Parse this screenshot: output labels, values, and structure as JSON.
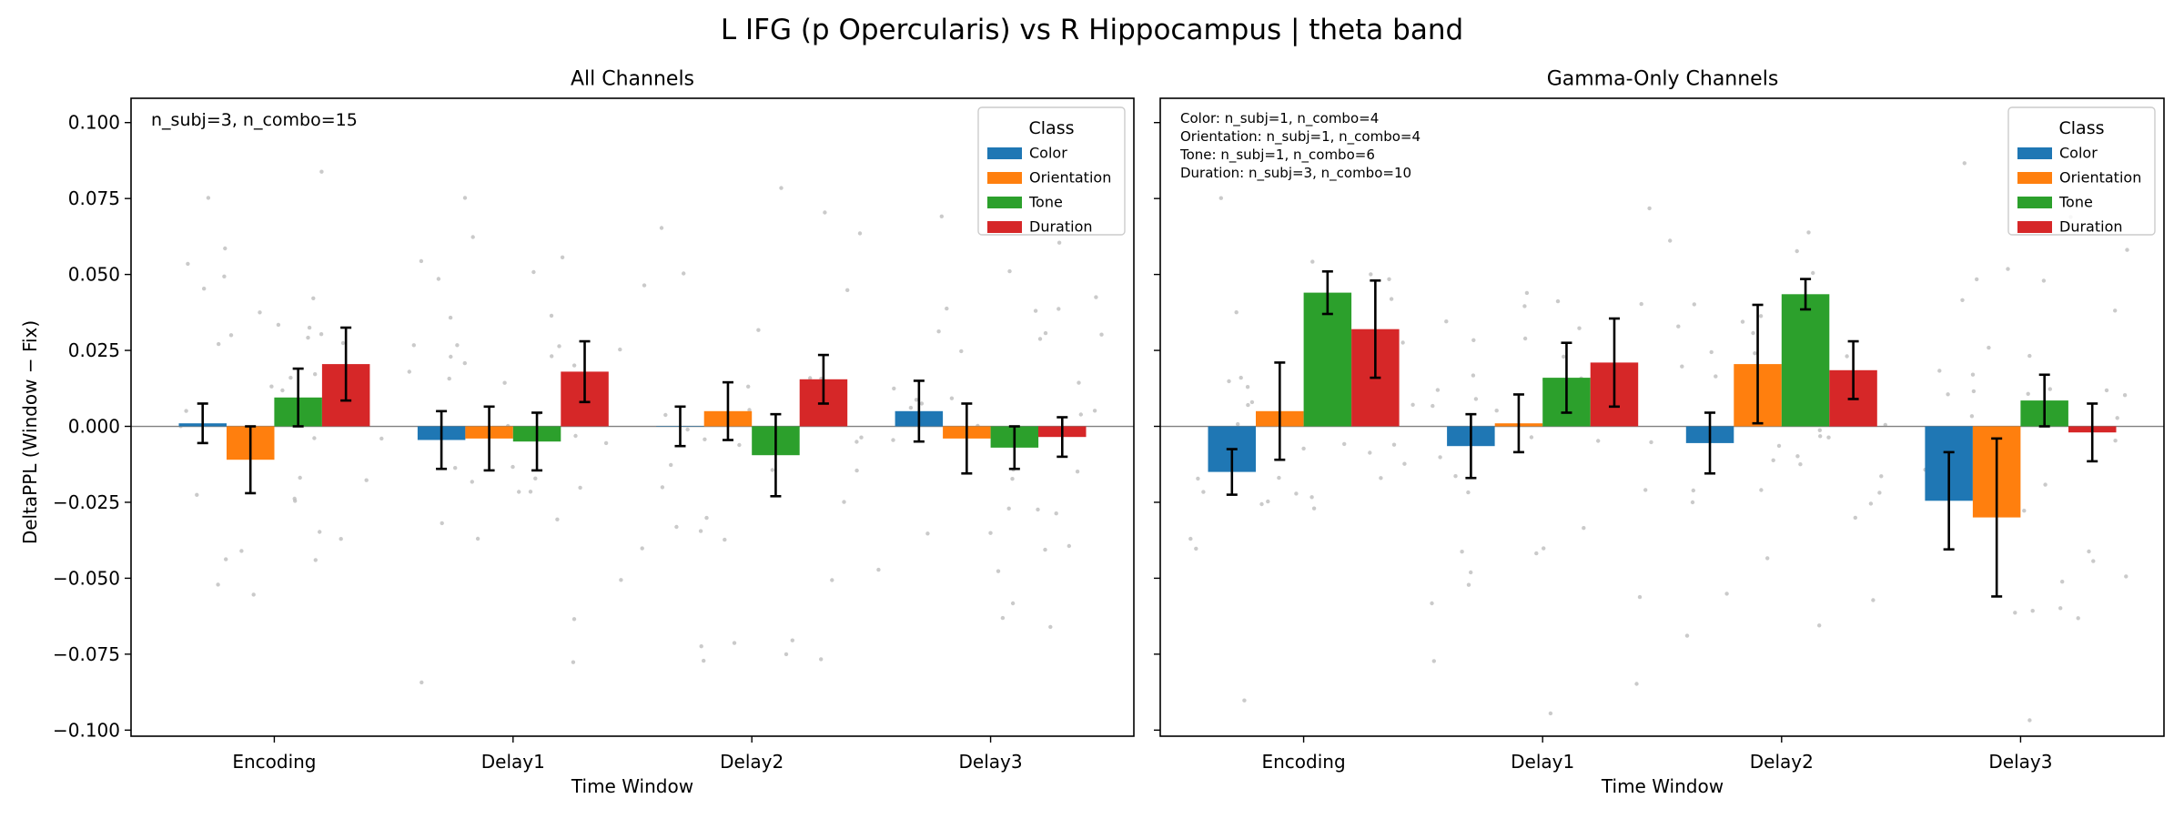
{
  "figure": {
    "suptitle": "L IFG (p Opercularis) vs R Hippocampus  |  theta band",
    "ylabel": "DeltaPPL (Window − Fix)"
  },
  "legend": {
    "title": "Class",
    "placement": "upper right",
    "entries": [
      {
        "name": "Color",
        "color": "#1f77b4"
      },
      {
        "name": "Orientation",
        "color": "#ff7f0e"
      },
      {
        "name": "Tone",
        "color": "#2ca02c"
      },
      {
        "name": "Duration",
        "color": "#d62728"
      }
    ]
  },
  "chart_data": [
    {
      "type": "bar",
      "title": "All Channels",
      "xlabel": "Time Window",
      "ylabel": "DeltaPPL (Window − Fix)",
      "ylim": [
        -0.102,
        0.108
      ],
      "yticks": [
        -0.1,
        -0.075,
        -0.05,
        -0.025,
        0.0,
        0.025,
        0.05,
        0.075,
        0.1
      ],
      "ytick_labels": [
        "−0.100",
        "−0.075",
        "−0.050",
        "−0.025",
        "0.000",
        "0.025",
        "0.050",
        "0.075",
        "0.100"
      ],
      "categories": [
        "Encoding",
        "Delay1",
        "Delay2",
        "Delay3"
      ],
      "annotation_lines": [
        "n_subj=3, n_combo=15"
      ],
      "series": [
        {
          "name": "Color",
          "color": "#1f77b4",
          "values": [
            0.001,
            -0.0045,
            0.0,
            0.005
          ],
          "err": [
            0.0065,
            0.0095,
            0.0065,
            0.01
          ]
        },
        {
          "name": "Orientation",
          "color": "#ff7f0e",
          "values": [
            -0.011,
            -0.004,
            0.005,
            -0.004
          ],
          "err": [
            0.011,
            0.0105,
            0.0095,
            0.0115
          ]
        },
        {
          "name": "Tone",
          "color": "#2ca02c",
          "values": [
            0.0095,
            -0.005,
            -0.0095,
            -0.007
          ],
          "err": [
            0.0095,
            0.0095,
            0.0135,
            0.007
          ]
        },
        {
          "name": "Duration",
          "color": "#d62728",
          "values": [
            0.0205,
            0.018,
            0.0155,
            -0.0035
          ],
          "err": [
            0.012,
            0.01,
            0.008,
            0.0065
          ]
        }
      ]
    },
    {
      "type": "bar",
      "title": "Gamma-Only Channels",
      "xlabel": "Time Window",
      "ylim": [
        -0.102,
        0.108
      ],
      "categories": [
        "Encoding",
        "Delay1",
        "Delay2",
        "Delay3"
      ],
      "annotation_lines": [
        "Color: n_subj=1, n_combo=4",
        "Orientation: n_subj=1, n_combo=4",
        "Tone: n_subj=1, n_combo=6",
        "Duration: n_subj=3, n_combo=10"
      ],
      "series": [
        {
          "name": "Color",
          "color": "#1f77b4",
          "values": [
            -0.015,
            -0.0065,
            -0.0055,
            -0.0245
          ],
          "err": [
            0.0075,
            0.0105,
            0.01,
            0.016
          ]
        },
        {
          "name": "Orientation",
          "color": "#ff7f0e",
          "values": [
            0.005,
            0.001,
            0.0205,
            -0.03
          ],
          "err": [
            0.016,
            0.0095,
            0.0195,
            0.026
          ]
        },
        {
          "name": "Tone",
          "color": "#2ca02c",
          "values": [
            0.044,
            0.016,
            0.0435,
            0.0085
          ],
          "err": [
            0.007,
            0.0115,
            0.005,
            0.0085
          ]
        },
        {
          "name": "Duration",
          "color": "#d62728",
          "values": [
            0.032,
            0.021,
            0.0185,
            -0.002
          ],
          "err": [
            0.016,
            0.0145,
            0.0095,
            0.0095
          ]
        }
      ]
    }
  ]
}
